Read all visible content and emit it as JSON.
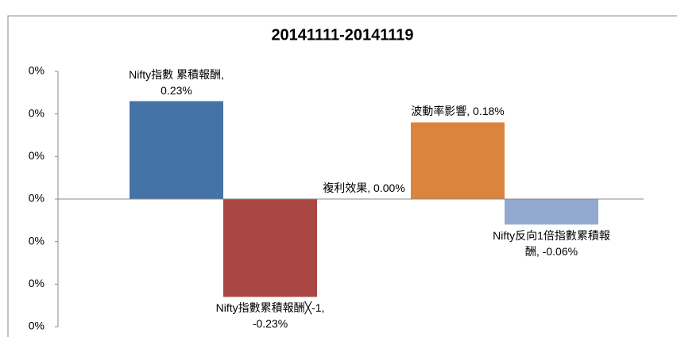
{
  "chart_data": {
    "type": "bar",
    "title": "20141111-20141119",
    "categories": [
      "Nifty指數 累積報酬",
      "Nifty指數累積報酬╳-1",
      "複利效果",
      "波動率影響",
      "Nifty反向1倍指數累積報酬"
    ],
    "values": [
      0.23,
      -0.23,
      0.0,
      0.18,
      -0.06
    ],
    "value_labels": [
      "Nifty指數 累積報酬, 0.23%",
      "Nifty指數累積報酬╳-1, -0.23%",
      "複利效果, 0.00%",
      "波動率影響, 0.18%",
      "Nifty反向1倍指數累積報酬, -0.06%"
    ],
    "colors": [
      "#4572a7",
      "#aa4643",
      "#89a54e",
      "#db843d",
      "#93a9cf"
    ],
    "ylim": [
      -0.3,
      0.3
    ],
    "yticks": [
      {
        "value": 0.3,
        "label": "0%"
      },
      {
        "value": 0.2,
        "label": "0%"
      },
      {
        "value": 0.1,
        "label": "0%"
      },
      {
        "value": 0,
        "label": "0%"
      },
      {
        "value": -0.1,
        "label": "0%"
      },
      {
        "value": -0.2,
        "label": "0%"
      },
      {
        "value": -0.3,
        "label": "0%"
      }
    ],
    "grid": false
  }
}
